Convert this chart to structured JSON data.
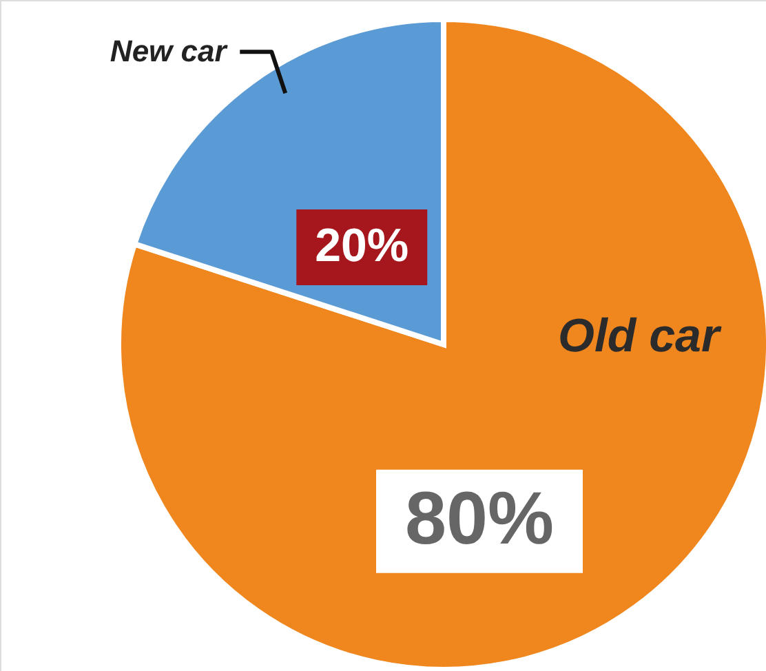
{
  "chart_data": {
    "type": "pie",
    "categories": [
      "Old car",
      "New car"
    ],
    "values": [
      80,
      20
    ],
    "colors": [
      "#f0871e",
      "#5b9bd5"
    ],
    "value_labels": [
      "80%",
      "20%"
    ]
  }
}
